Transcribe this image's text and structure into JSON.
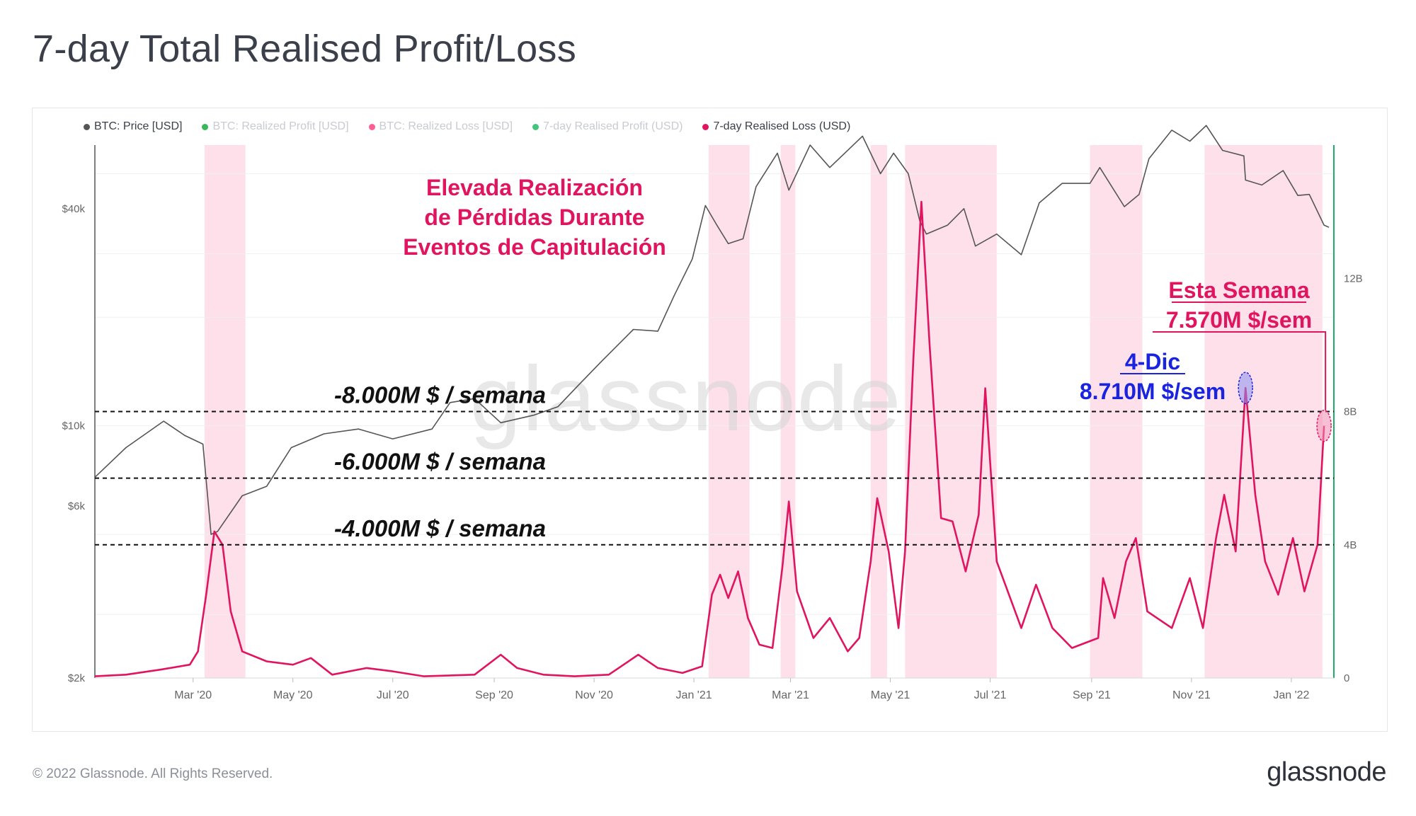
{
  "title": "7-day Total Realised Profit/Loss",
  "legend": [
    {
      "label": "BTC: Price [USD]",
      "color": "#555555",
      "active": true
    },
    {
      "label": "BTC: Realized Profit [USD]",
      "color": "#21b04b",
      "active": false
    },
    {
      "label": "BTC: Realized Loss [USD]",
      "color": "#ff4d88",
      "active": false
    },
    {
      "label": "7-day Realised Profit (USD)",
      "color": "#2fbf71",
      "active": false
    },
    {
      "label": "7-day Realised Loss (USD)",
      "color": "#e0145f",
      "active": true
    }
  ],
  "watermark": "glassnode",
  "footer": {
    "copyright": "© 2022 Glassnode. All Rights Reserved.",
    "logo": "glassnode"
  },
  "colors": {
    "price": "#555555",
    "loss": "#e0145f",
    "band": "#fde0ea",
    "right_axis_line": "#1fae6a",
    "annotation_pink": "#e0145f",
    "annotation_blue": "#1a24e0"
  },
  "chart_data": {
    "type": "line",
    "x_ticks": [
      "Mar '20",
      "May '20",
      "Jul '20",
      "Sep '20",
      "Nov '20",
      "Jan '21",
      "Mar '21",
      "May '21",
      "Jul '21",
      "Sep '21",
      "Nov '21",
      "Jan '22"
    ],
    "y_left": {
      "scale": "log",
      "ticks": [
        "$2k",
        "$6k",
        "$10k",
        "$40k"
      ],
      "tick_values": [
        2000,
        6000,
        10000,
        40000
      ],
      "range": [
        2000,
        60000
      ]
    },
    "y_right": {
      "ticks": [
        "0",
        "4B",
        "8B",
        "12B"
      ],
      "tick_values": [
        0,
        4,
        8,
        12
      ],
      "range": [
        0,
        16
      ],
      "unit": "B USD"
    },
    "capitulation_bands": [
      [
        "2020-03-08",
        "2020-04-02"
      ],
      [
        "2021-01-10",
        "2021-02-04"
      ],
      [
        "2021-02-23",
        "2021-03-04"
      ],
      [
        "2021-04-19",
        "2021-04-29"
      ],
      [
        "2021-05-10",
        "2021-07-05"
      ],
      [
        "2021-08-31",
        "2021-10-02"
      ],
      [
        "2021-11-09",
        "2022-01-20"
      ]
    ],
    "reference_lines": [
      {
        "label": "-8.000M $ / semana",
        "value": 8
      },
      {
        "label": "-6.000M $ / semana",
        "value": 6
      },
      {
        "label": "-4.000M $ / semana",
        "value": 4
      }
    ],
    "annotations": {
      "capitulation": [
        "Elevada Realización",
        "de Pérdidas Durante",
        "Eventos de Capitulación"
      ],
      "current_week": [
        "Esta Semana",
        "7.570M $/sem"
      ],
      "dec4": [
        "4-Dic",
        "8.710M $/sem"
      ]
    },
    "series": [
      {
        "name": "BTC: Price [USD]",
        "axis": "left",
        "points": [
          [
            "2020-01-01",
            7200
          ],
          [
            "2020-01-20",
            8700
          ],
          [
            "2020-02-12",
            10300
          ],
          [
            "2020-02-25",
            9400
          ],
          [
            "2020-03-07",
            8900
          ],
          [
            "2020-03-12",
            5000
          ],
          [
            "2020-03-16",
            5100
          ],
          [
            "2020-03-31",
            6400
          ],
          [
            "2020-04-15",
            6800
          ],
          [
            "2020-04-30",
            8700
          ],
          [
            "2020-05-20",
            9500
          ],
          [
            "2020-06-10",
            9800
          ],
          [
            "2020-07-01",
            9200
          ],
          [
            "2020-07-25",
            9800
          ],
          [
            "2020-08-05",
            11600
          ],
          [
            "2020-08-20",
            11900
          ],
          [
            "2020-09-05",
            10200
          ],
          [
            "2020-09-25",
            10700
          ],
          [
            "2020-10-10",
            11300
          ],
          [
            "2020-10-22",
            12900
          ],
          [
            "2020-11-05",
            15000
          ],
          [
            "2020-11-25",
            18500
          ],
          [
            "2020-12-10",
            18300
          ],
          [
            "2020-12-20",
            23000
          ],
          [
            "2020-12-31",
            29000
          ],
          [
            "2021-01-08",
            40800
          ],
          [
            "2021-01-15",
            36000
          ],
          [
            "2021-01-22",
            32000
          ],
          [
            "2021-01-31",
            33000
          ],
          [
            "2021-02-08",
            46000
          ],
          [
            "2021-02-21",
            57000
          ],
          [
            "2021-02-28",
            45000
          ],
          [
            "2021-03-13",
            60000
          ],
          [
            "2021-03-25",
            52000
          ],
          [
            "2021-04-14",
            63500
          ],
          [
            "2021-04-25",
            50000
          ],
          [
            "2021-05-03",
            57000
          ],
          [
            "2021-05-12",
            50000
          ],
          [
            "2021-05-19",
            37000
          ],
          [
            "2021-05-23",
            34000
          ],
          [
            "2021-06-05",
            36000
          ],
          [
            "2021-06-15",
            40000
          ],
          [
            "2021-06-22",
            31500
          ],
          [
            "2021-07-05",
            34000
          ],
          [
            "2021-07-20",
            29800
          ],
          [
            "2021-07-31",
            41500
          ],
          [
            "2021-08-14",
            47000
          ],
          [
            "2021-08-31",
            47000
          ],
          [
            "2021-09-06",
            52000
          ],
          [
            "2021-09-21",
            40500
          ],
          [
            "2021-09-30",
            43800
          ],
          [
            "2021-10-06",
            55000
          ],
          [
            "2021-10-20",
            66000
          ],
          [
            "2021-10-31",
            61500
          ],
          [
            "2021-11-10",
            68000
          ],
          [
            "2021-11-20",
            58000
          ],
          [
            "2021-12-03",
            56000
          ],
          [
            "2021-12-04",
            48000
          ],
          [
            "2021-12-14",
            46500
          ],
          [
            "2021-12-27",
            51000
          ],
          [
            "2022-01-05",
            43500
          ],
          [
            "2022-01-12",
            43800
          ],
          [
            "2022-01-21",
            36000
          ],
          [
            "2022-01-24",
            35500
          ]
        ]
      },
      {
        "name": "7-day Realised Loss (USD)",
        "axis": "right",
        "unit": "B",
        "points": [
          [
            "2020-01-01",
            0.05
          ],
          [
            "2020-01-20",
            0.1
          ],
          [
            "2020-02-10",
            0.25
          ],
          [
            "2020-02-28",
            0.4
          ],
          [
            "2020-03-04",
            0.8
          ],
          [
            "2020-03-09",
            2.5
          ],
          [
            "2020-03-14",
            4.4
          ],
          [
            "2020-03-19",
            4.0
          ],
          [
            "2020-03-24",
            2.0
          ],
          [
            "2020-03-31",
            0.8
          ],
          [
            "2020-04-15",
            0.5
          ],
          [
            "2020-05-01",
            0.4
          ],
          [
            "2020-05-12",
            0.6
          ],
          [
            "2020-05-25",
            0.1
          ],
          [
            "2020-06-15",
            0.3
          ],
          [
            "2020-07-01",
            0.2
          ],
          [
            "2020-07-20",
            0.05
          ],
          [
            "2020-08-20",
            0.1
          ],
          [
            "2020-09-05",
            0.7
          ],
          [
            "2020-09-15",
            0.3
          ],
          [
            "2020-10-01",
            0.1
          ],
          [
            "2020-10-20",
            0.05
          ],
          [
            "2020-11-10",
            0.1
          ],
          [
            "2020-11-28",
            0.7
          ],
          [
            "2020-12-10",
            0.3
          ],
          [
            "2020-12-25",
            0.15
          ],
          [
            "2021-01-06",
            0.35
          ],
          [
            "2021-01-12",
            2.5
          ],
          [
            "2021-01-17",
            3.1
          ],
          [
            "2021-01-22",
            2.4
          ],
          [
            "2021-01-28",
            3.2
          ],
          [
            "2021-02-03",
            1.8
          ],
          [
            "2021-02-10",
            1.0
          ],
          [
            "2021-02-18",
            0.9
          ],
          [
            "2021-02-24",
            3.3
          ],
          [
            "2021-02-28",
            5.3
          ],
          [
            "2021-03-05",
            2.6
          ],
          [
            "2021-03-15",
            1.2
          ],
          [
            "2021-03-25",
            1.8
          ],
          [
            "2021-04-05",
            0.8
          ],
          [
            "2021-04-12",
            1.2
          ],
          [
            "2021-04-19",
            3.5
          ],
          [
            "2021-04-23",
            5.4
          ],
          [
            "2021-04-30",
            3.8
          ],
          [
            "2021-05-06",
            1.5
          ],
          [
            "2021-05-10",
            3.8
          ],
          [
            "2021-05-15",
            9.5
          ],
          [
            "2021-05-20",
            14.3
          ],
          [
            "2021-05-25",
            10.0
          ],
          [
            "2021-06-01",
            4.8
          ],
          [
            "2021-06-08",
            4.7
          ],
          [
            "2021-06-16",
            3.2
          ],
          [
            "2021-06-24",
            4.9
          ],
          [
            "2021-06-28",
            8.7
          ],
          [
            "2021-07-05",
            3.5
          ],
          [
            "2021-07-20",
            1.5
          ],
          [
            "2021-07-29",
            2.8
          ],
          [
            "2021-08-08",
            1.5
          ],
          [
            "2021-08-20",
            0.9
          ],
          [
            "2021-09-05",
            1.2
          ],
          [
            "2021-09-08",
            3.0
          ],
          [
            "2021-09-15",
            1.8
          ],
          [
            "2021-09-22",
            3.5
          ],
          [
            "2021-09-28",
            4.2
          ],
          [
            "2021-10-05",
            2.0
          ],
          [
            "2021-10-20",
            1.5
          ],
          [
            "2021-10-31",
            3.0
          ],
          [
            "2021-11-08",
            1.5
          ],
          [
            "2021-11-16",
            4.2
          ],
          [
            "2021-11-21",
            5.5
          ],
          [
            "2021-11-28",
            3.8
          ],
          [
            "2021-12-04",
            8.71
          ],
          [
            "2021-12-10",
            5.5
          ],
          [
            "2021-12-16",
            3.5
          ],
          [
            "2021-12-24",
            2.5
          ],
          [
            "2022-01-02",
            4.2
          ],
          [
            "2022-01-09",
            2.6
          ],
          [
            "2022-01-17",
            4.0
          ],
          [
            "2022-01-21",
            7.57
          ]
        ]
      }
    ]
  }
}
